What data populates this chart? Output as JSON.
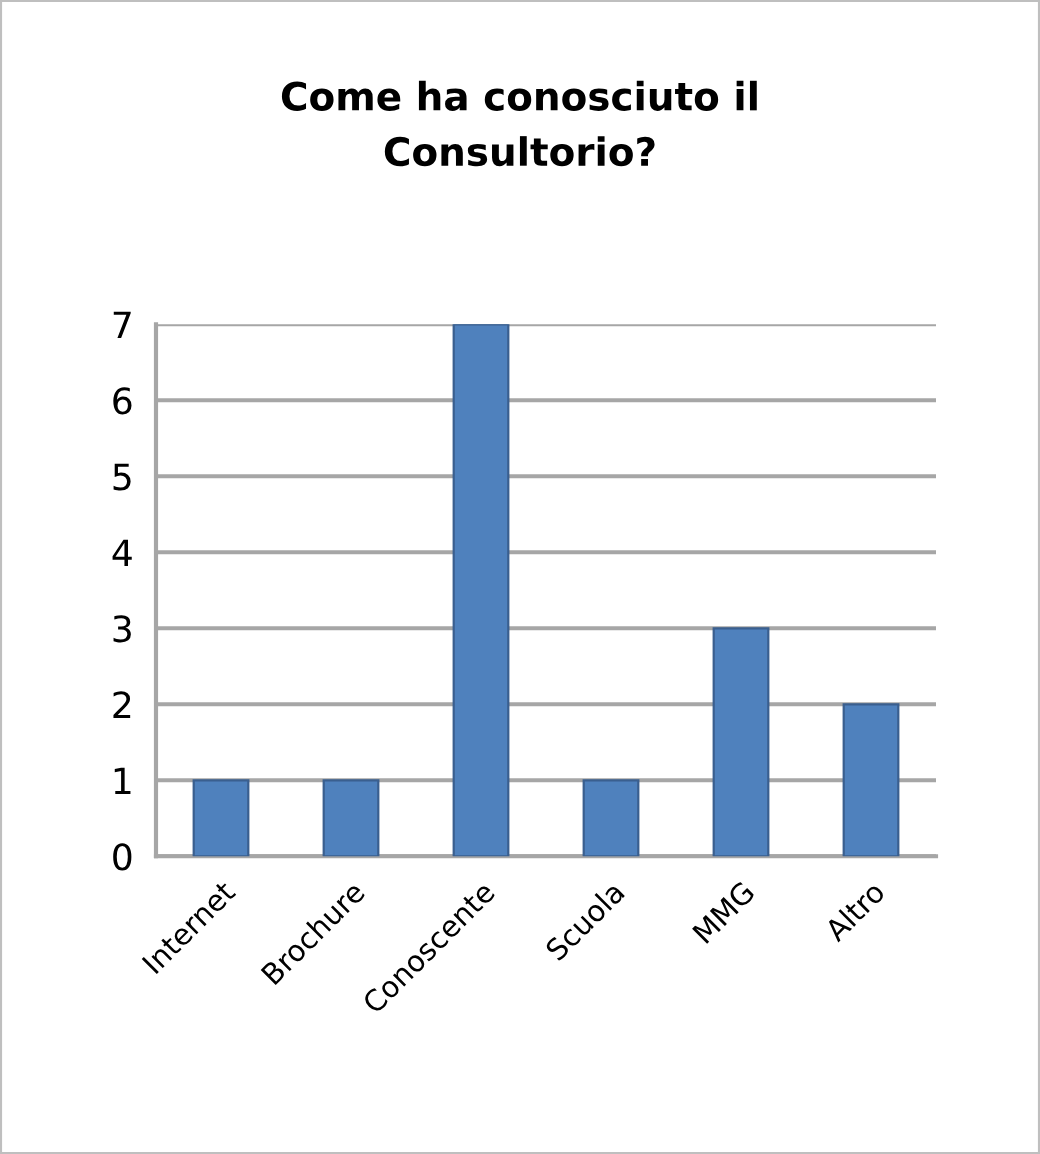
{
  "chart_data": {
    "type": "bar",
    "title": "Come ha conosciuto il\nConsultorio?",
    "categories": [
      "Internet",
      "Brochure",
      "Conoscente",
      "Scuola",
      "MMG",
      "Altro"
    ],
    "values": [
      1,
      1,
      7,
      1,
      3,
      2
    ],
    "color": "#4f81bd",
    "ylim": [
      0,
      7
    ],
    "yticks": [
      0,
      1,
      2,
      3,
      4,
      5,
      6,
      7
    ],
    "grid": "y",
    "legend": false
  }
}
